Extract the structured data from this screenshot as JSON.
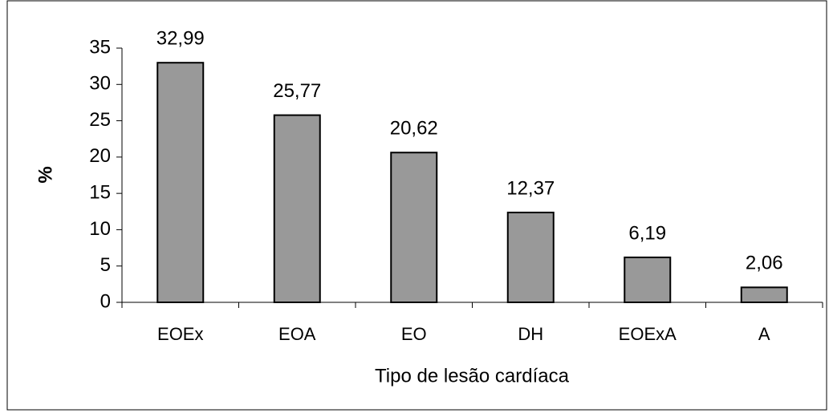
{
  "chart_data": {
    "type": "bar",
    "categories": [
      "EOEx",
      "EOA",
      "EO",
      "DH",
      "EOExA",
      "A"
    ],
    "values": [
      32.99,
      25.77,
      20.62,
      12.37,
      6.19,
      2.06
    ],
    "value_labels": [
      "32,99",
      "25,77",
      "20,62",
      "12,37",
      "6,19",
      "2,06"
    ],
    "color": "#999999",
    "ylim": [
      0,
      35
    ],
    "yticks": [
      0,
      5,
      10,
      15,
      20,
      25,
      30,
      35
    ],
    "y_label": "%",
    "x_label": "Tipo de lesão cardíaca",
    "grid": false
  }
}
